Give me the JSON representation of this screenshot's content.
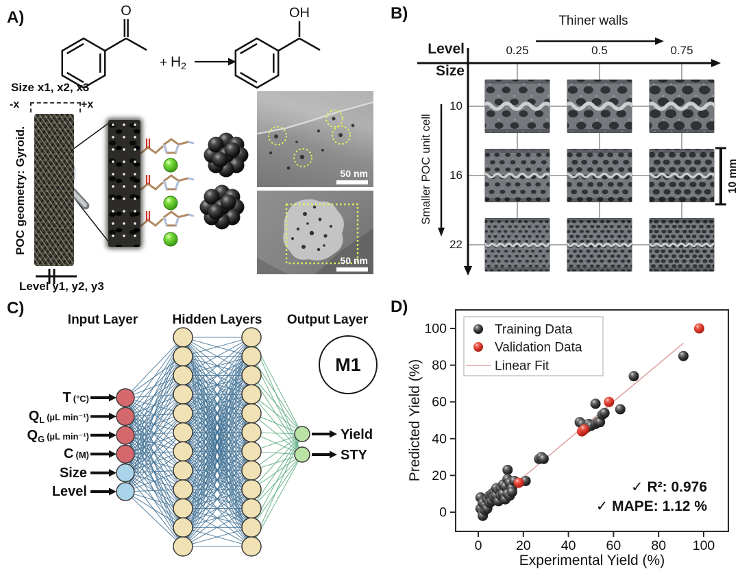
{
  "panel_a": {
    "label": "A)",
    "reaction": {
      "o": "O",
      "oh": "OH",
      "plus": "+",
      "h": "H",
      "h_sub": "2"
    },
    "size_annotation": "Size x1, x2, x3",
    "minus_x": "-x",
    "plus_x": "+x",
    "geometry_annotation": "POC geometry: Gyroid.",
    "level_annotation": "Level y1, y2, y3",
    "tem": {
      "top_scale": "50 nm",
      "bottom_scale": "50 nm"
    }
  },
  "panel_b": {
    "label": "B)",
    "arrow_annotation": "Thiner walls",
    "x_axis_title": "Level",
    "y_axis_title": "Size",
    "col_values": [
      "0.25",
      "0.5",
      "0.75"
    ],
    "row_values": [
      "10",
      "16",
      "22"
    ],
    "side_annotation": "Smaller POC unit cell",
    "scale_bar_label": "10 mm"
  },
  "panel_c": {
    "label": "C)",
    "headers": {
      "input": "Input Layer",
      "hidden": "Hidden Layers",
      "output": "Output Layer"
    },
    "inputs": [
      {
        "main": "T",
        "sub": "",
        "unit": "(°C)"
      },
      {
        "main": "Q",
        "sub": "L",
        "unit": "(µL min⁻¹)"
      },
      {
        "main": "Q",
        "sub": "G",
        "unit": "(µL min⁻¹)"
      },
      {
        "main": "C",
        "sub": "",
        "unit": "(M)"
      },
      {
        "main": "Size",
        "sub": "",
        "unit": ""
      },
      {
        "main": "Level",
        "sub": "",
        "unit": ""
      }
    ],
    "output_labels": [
      "Yield",
      "STY"
    ],
    "model_badge": "M1",
    "network": {
      "input_nodes": 6,
      "hidden_layers": [
        12,
        12
      ],
      "output_nodes": 2,
      "input_node_colors": [
        "#d5686d",
        "#d5686d",
        "#d5686d",
        "#d5686d",
        "#a9d4e9",
        "#a9d4e9"
      ],
      "hidden_node_color": "#f0e2b4",
      "output_node_color": "#b9e2a4",
      "hidden_edge_color": "#3d6e92",
      "output_edge_color": "#5fae83"
    }
  },
  "chart_data": {
    "type": "scatter",
    "panel_label": "D)",
    "xlabel": "Experimental Yield (%)",
    "ylabel": "Predicted Yield (%)",
    "xlim": [
      -10,
      111
    ],
    "ylim": [
      -10,
      110
    ],
    "xticks": [
      0,
      20,
      40,
      60,
      80,
      100
    ],
    "yticks": [
      0,
      20,
      40,
      60,
      80,
      100
    ],
    "grid": false,
    "legend_position": "upper-left",
    "series": [
      {
        "name": "Training Data",
        "marker_color": "#3a3a3a",
        "points": [
          [
            1,
            8
          ],
          [
            1,
            2
          ],
          [
            2,
            5
          ],
          [
            2,
            0
          ],
          [
            2,
            -2
          ],
          [
            3,
            1
          ],
          [
            3,
            4
          ],
          [
            4,
            7
          ],
          [
            4,
            2
          ],
          [
            5,
            9
          ],
          [
            5,
            5
          ],
          [
            6,
            10
          ],
          [
            6,
            6
          ],
          [
            7,
            11
          ],
          [
            7,
            8
          ],
          [
            8,
            13
          ],
          [
            8,
            9
          ],
          [
            9,
            12
          ],
          [
            9,
            6
          ],
          [
            10,
            13
          ],
          [
            10,
            9
          ],
          [
            11,
            15
          ],
          [
            11,
            10
          ],
          [
            12,
            14
          ],
          [
            12,
            7
          ],
          [
            13,
            23
          ],
          [
            13,
            18
          ],
          [
            13,
            10
          ],
          [
            14,
            16
          ],
          [
            14,
            9
          ],
          [
            15,
            13
          ],
          [
            15,
            11
          ],
          [
            16,
            17
          ],
          [
            21,
            17
          ],
          [
            27,
            29
          ],
          [
            28,
            30
          ],
          [
            29,
            29
          ],
          [
            45,
            49
          ],
          [
            46,
            48
          ],
          [
            48,
            46
          ],
          [
            49,
            48
          ],
          [
            50,
            47
          ],
          [
            52,
            48
          ],
          [
            53,
            49
          ],
          [
            54,
            49
          ],
          [
            52,
            59
          ],
          [
            55,
            53
          ],
          [
            56,
            54
          ],
          [
            63,
            56
          ],
          [
            69,
            74
          ],
          [
            91,
            85
          ]
        ]
      },
      {
        "name": "Validation Data",
        "marker_color": "#e03a30",
        "points": [
          [
            18,
            16
          ],
          [
            46,
            44
          ],
          [
            47,
            45
          ],
          [
            58,
            60
          ],
          [
            98,
            100
          ]
        ]
      }
    ],
    "fit_line": {
      "name": "Linear Fit",
      "color": "#e2a3a3",
      "x_start": 15,
      "y_start": 14,
      "x_end": 91,
      "y_end": 92
    },
    "annotations": [
      "✓ R²: 0.976",
      "✓ MAPE: 1.12 %"
    ]
  }
}
